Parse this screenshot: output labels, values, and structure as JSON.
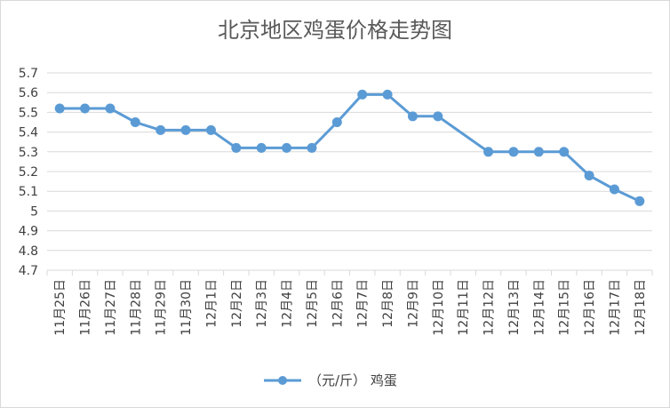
{
  "chart_data": {
    "type": "line",
    "title": "北京地区鸡蛋价格走势图",
    "categories": [
      "11月25日",
      "11月26日",
      "11月27日",
      "11月28日",
      "11月29日",
      "11月30日",
      "12月1日",
      "12月2日",
      "12月3日",
      "12月4日",
      "12月5日",
      "12月6日",
      "12月7日",
      "12月8日",
      "12月9日",
      "12月10日",
      "12月11日",
      "12月12日",
      "12月13日",
      "12月14日",
      "12月15日",
      "12月16日",
      "12月17日",
      "12月18日"
    ],
    "series": [
      {
        "name": "（元/斤） 鸡蛋",
        "values": [
          5.52,
          5.52,
          5.52,
          5.45,
          5.41,
          5.41,
          5.41,
          5.32,
          5.32,
          5.32,
          5.32,
          5.45,
          5.59,
          5.59,
          5.48,
          5.48,
          null,
          5.3,
          5.3,
          5.3,
          5.3,
          5.18,
          5.11,
          5.05
        ]
      }
    ],
    "ylim": [
      4.7,
      5.7
    ],
    "yticks": [
      "5.7",
      "5.6",
      "5.5",
      "5.4",
      "5.3",
      "5.2",
      "5.1",
      "5",
      "4.9",
      "4.8",
      "4.7"
    ],
    "legend_position": "bottom",
    "grid": true,
    "colors": {
      "line": "#5b9bd5",
      "grid": "#d9d9d9"
    }
  }
}
